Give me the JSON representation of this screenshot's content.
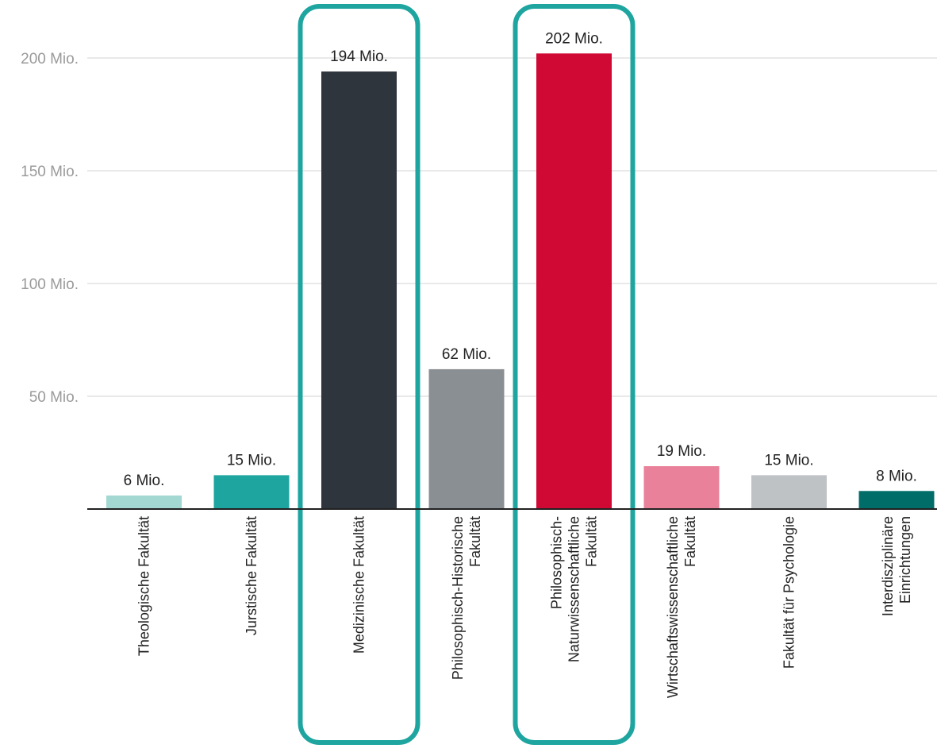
{
  "chart_data": {
    "type": "bar",
    "categories": [
      "Theologische Fakultät",
      "Jurstische Fakultät",
      "Medizinische Fakultät",
      "Philosophisch-Historische Fakultät",
      "Philosophisch-Naturwissenschaftliche Fakultät",
      "Wirtschaftswissenschaftliche Fakultät",
      "Fakultät für Psychologie",
      "Interdisziplinäre Einrichtungen"
    ],
    "category_lines": [
      [
        "Theologische Fakultät"
      ],
      [
        "Jurstische Fakultät"
      ],
      [
        "Medizinische Fakultät"
      ],
      [
        "Philosophisch-Historische",
        "Fakultät"
      ],
      [
        "Philosophisch-",
        "Naturwissenschaftliche",
        "Fakultät"
      ],
      [
        "Wirtschaftswissenschaftliche",
        "Fakultät"
      ],
      [
        "Fakultät für Psychologie"
      ],
      [
        "Interdisziplinäre",
        "Einrichtungen"
      ]
    ],
    "values": [
      6,
      15,
      194,
      62,
      202,
      19,
      15,
      8
    ],
    "value_labels": [
      "6 Mio.",
      "15 Mio.",
      "194 Mio.",
      "62 Mio.",
      "202 Mio.",
      "19 Mio.",
      "15 Mio.",
      "8 Mio."
    ],
    "colors": [
      "#a3d8d2",
      "#1fa5a0",
      "#2e353c",
      "#8a8f93",
      "#cf0834",
      "#e9819b",
      "#bec2c5",
      "#006d68"
    ],
    "highlighted": [
      2,
      4
    ],
    "highlight_color": "#1fa5a0",
    "yticks": [
      50,
      100,
      150,
      200
    ],
    "ytick_labels": [
      "50 Mio.",
      "100 Mio.",
      "150 Mio.",
      "200 Mio."
    ],
    "ylim": [
      0,
      225
    ],
    "grid": true,
    "title": "",
    "xlabel": "",
    "ylabel": ""
  }
}
